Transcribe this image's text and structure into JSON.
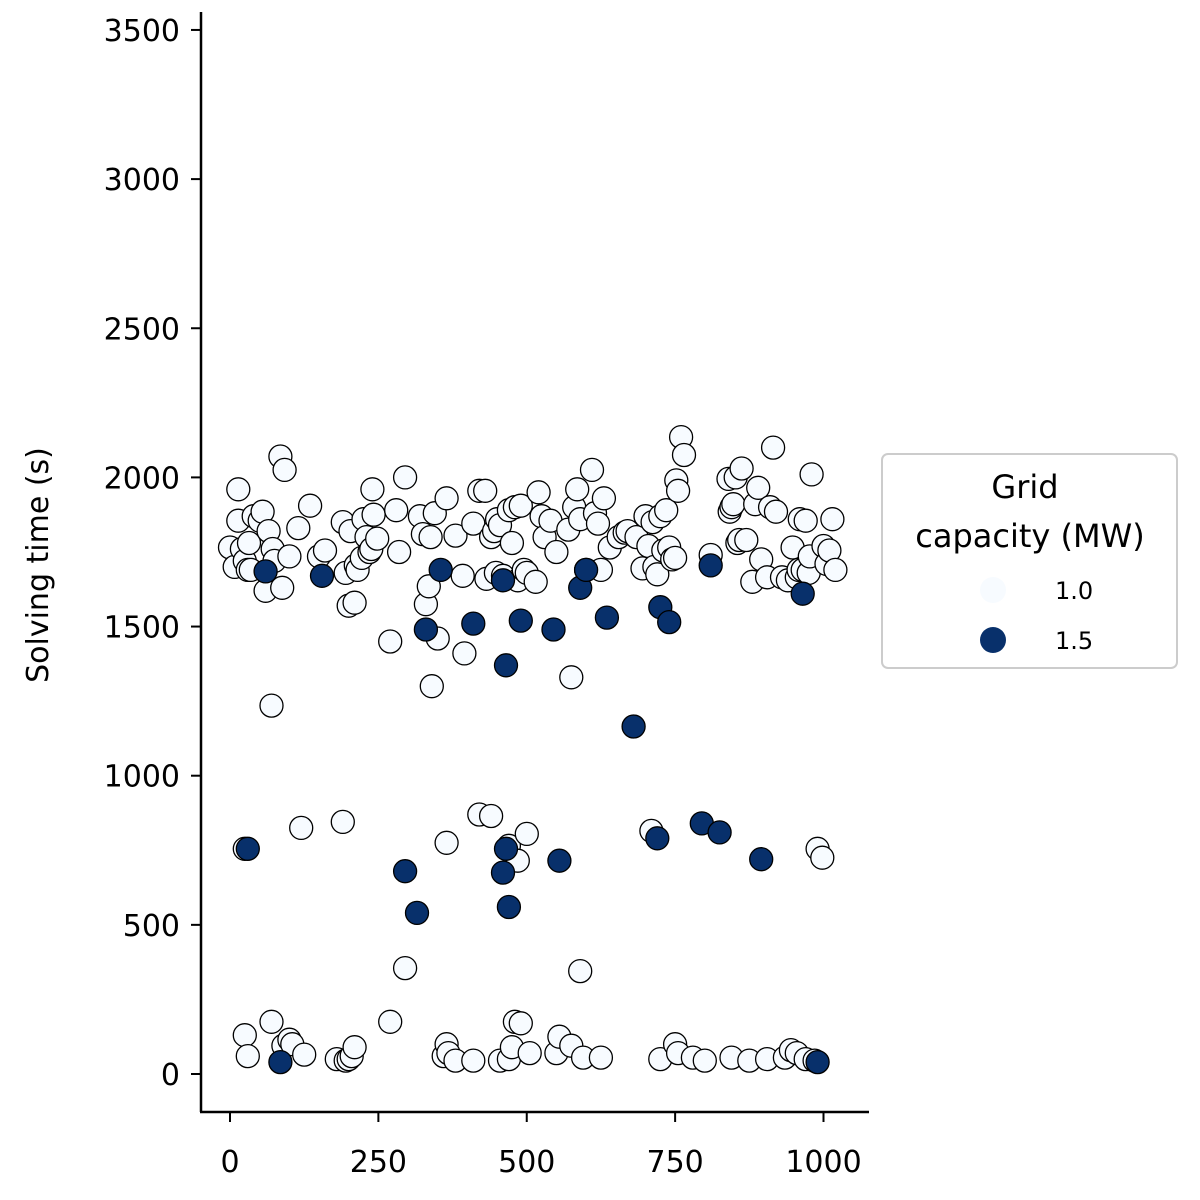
{
  "chart_data": {
    "type": "scatter",
    "title": "",
    "xlabel": "",
    "ylabel": "Solving time (s)",
    "xlim": [
      -50,
      1075
    ],
    "ylim": [
      -125,
      3550
    ],
    "xticks": [
      "0",
      "250",
      "500",
      "750",
      "1000"
    ],
    "xtick_values": [
      0,
      250,
      500,
      750,
      1000
    ],
    "yticks": [
      "0",
      "500",
      "1000",
      "1500",
      "2000",
      "2500",
      "3000",
      "3500"
    ],
    "ytick_values": [
      0,
      500,
      1000,
      1500,
      2000,
      2500,
      3000,
      3500
    ],
    "grid": false,
    "legend": {
      "title_line1": "Grid",
      "title_line2": "capacity (MW)",
      "placement": "center-right",
      "entries": [
        {
          "label": "1.0",
          "color": "#f7fbff"
        },
        {
          "label": "1.5",
          "color": "#08306b"
        }
      ]
    },
    "series": [
      {
        "name": "1.0",
        "color": "#f7fbff",
        "points": [
          [
            0,
            1765
          ],
          [
            8,
            1700
          ],
          [
            14,
            1960
          ],
          [
            14,
            1855
          ],
          [
            20,
            1760
          ],
          [
            25,
            1720
          ],
          [
            30,
            1690
          ],
          [
            32,
            1780
          ],
          [
            35,
            1690
          ],
          [
            40,
            1870
          ],
          [
            50,
            1855
          ],
          [
            55,
            1885
          ],
          [
            60,
            1620
          ],
          [
            65,
            1820
          ],
          [
            70,
            1235
          ],
          [
            72,
            1760
          ],
          [
            75,
            1720
          ],
          [
            85,
            2070
          ],
          [
            88,
            1630
          ],
          [
            92,
            2025
          ],
          [
            100,
            1735
          ],
          [
            115,
            1830
          ],
          [
            135,
            1905
          ],
          [
            150,
            1735
          ],
          [
            160,
            1755
          ],
          [
            190,
            1850
          ],
          [
            195,
            1680
          ],
          [
            200,
            1570
          ],
          [
            203,
            1820
          ],
          [
            210,
            1580
          ],
          [
            212,
            1705
          ],
          [
            215,
            1690
          ],
          [
            222,
            1730
          ],
          [
            225,
            1860
          ],
          [
            230,
            1800
          ],
          [
            235,
            1750
          ],
          [
            238,
            1760
          ],
          [
            240,
            1960
          ],
          [
            242,
            1875
          ],
          [
            248,
            1795
          ],
          [
            270,
            1450
          ],
          [
            280,
            1890
          ],
          [
            285,
            1750
          ],
          [
            295,
            2000
          ],
          [
            320,
            1870
          ],
          [
            325,
            1810
          ],
          [
            330,
            1575
          ],
          [
            335,
            1635
          ],
          [
            338,
            1800
          ],
          [
            340,
            1300
          ],
          [
            345,
            1880
          ],
          [
            350,
            1460
          ],
          [
            365,
            1930
          ],
          [
            380,
            1805
          ],
          [
            392,
            1670
          ],
          [
            395,
            1410
          ],
          [
            410,
            1845
          ],
          [
            420,
            1955
          ],
          [
            430,
            1955
          ],
          [
            432,
            1660
          ],
          [
            440,
            1800
          ],
          [
            445,
            1820
          ],
          [
            448,
            1680
          ],
          [
            450,
            1860
          ],
          [
            455,
            1840
          ],
          [
            460,
            1670
          ],
          [
            470,
            1890
          ],
          [
            475,
            1780
          ],
          [
            480,
            1900
          ],
          [
            485,
            1655
          ],
          [
            490,
            1905
          ],
          [
            495,
            1690
          ],
          [
            500,
            1680
          ],
          [
            515,
            1650
          ],
          [
            520,
            1950
          ],
          [
            525,
            1870
          ],
          [
            530,
            1800
          ],
          [
            540,
            1855
          ],
          [
            550,
            1750
          ],
          [
            570,
            1825
          ],
          [
            575,
            1330
          ],
          [
            580,
            1900
          ],
          [
            585,
            1960
          ],
          [
            590,
            1860
          ],
          [
            600,
            1690
          ],
          [
            610,
            2025
          ],
          [
            615,
            1880
          ],
          [
            620,
            1845
          ],
          [
            625,
            1690
          ],
          [
            630,
            1930
          ],
          [
            640,
            1765
          ],
          [
            655,
            1800
          ],
          [
            665,
            1815
          ],
          [
            670,
            1820
          ],
          [
            685,
            1800
          ],
          [
            695,
            1695
          ],
          [
            700,
            1870
          ],
          [
            705,
            1770
          ],
          [
            712,
            1850
          ],
          [
            715,
            1700
          ],
          [
            720,
            1675
          ],
          [
            725,
            1870
          ],
          [
            730,
            1755
          ],
          [
            735,
            1890
          ],
          [
            740,
            1765
          ],
          [
            745,
            1725
          ],
          [
            750,
            1730
          ],
          [
            752,
            1990
          ],
          [
            755,
            1955
          ],
          [
            760,
            2135
          ],
          [
            765,
            2075
          ],
          [
            810,
            1740
          ],
          [
            840,
            1995
          ],
          [
            842,
            1885
          ],
          [
            845,
            1900
          ],
          [
            848,
            1910
          ],
          [
            852,
            2000
          ],
          [
            855,
            1780
          ],
          [
            858,
            1790
          ],
          [
            862,
            2030
          ],
          [
            870,
            1790
          ],
          [
            880,
            1650
          ],
          [
            885,
            1910
          ],
          [
            890,
            1965
          ],
          [
            895,
            1725
          ],
          [
            905,
            1665
          ],
          [
            910,
            1900
          ],
          [
            915,
            2100
          ],
          [
            920,
            1885
          ],
          [
            930,
            1665
          ],
          [
            940,
            1655
          ],
          [
            948,
            1765
          ],
          [
            955,
            1665
          ],
          [
            958,
            1690
          ],
          [
            960,
            1860
          ],
          [
            965,
            1690
          ],
          [
            970,
            1855
          ],
          [
            975,
            1680
          ],
          [
            977,
            1735
          ],
          [
            980,
            2010
          ],
          [
            1000,
            1770
          ],
          [
            1005,
            1710
          ],
          [
            1010,
            1755
          ],
          [
            1015,
            1860
          ],
          [
            1020,
            1690
          ],
          [
            25,
            755
          ],
          [
            120,
            825
          ],
          [
            190,
            845
          ],
          [
            295,
            355
          ],
          [
            365,
            775
          ],
          [
            420,
            870
          ],
          [
            440,
            865
          ],
          [
            470,
            765
          ],
          [
            485,
            715
          ],
          [
            500,
            805
          ],
          [
            590,
            345
          ],
          [
            710,
            815
          ],
          [
            990,
            755
          ],
          [
            998,
            725
          ],
          [
            25,
            130
          ],
          [
            30,
            60
          ],
          [
            70,
            175
          ],
          [
            90,
            95
          ],
          [
            100,
            115
          ],
          [
            105,
            100
          ],
          [
            125,
            65
          ],
          [
            180,
            50
          ],
          [
            195,
            45
          ],
          [
            200,
            50
          ],
          [
            205,
            60
          ],
          [
            210,
            90
          ],
          [
            270,
            175
          ],
          [
            360,
            60
          ],
          [
            365,
            100
          ],
          [
            368,
            70
          ],
          [
            380,
            45
          ],
          [
            410,
            45
          ],
          [
            455,
            45
          ],
          [
            470,
            50
          ],
          [
            475,
            90
          ],
          [
            480,
            175
          ],
          [
            490,
            170
          ],
          [
            505,
            70
          ],
          [
            550,
            70
          ],
          [
            555,
            125
          ],
          [
            575,
            95
          ],
          [
            595,
            55
          ],
          [
            625,
            55
          ],
          [
            725,
            50
          ],
          [
            750,
            100
          ],
          [
            755,
            70
          ],
          [
            780,
            55
          ],
          [
            800,
            45
          ],
          [
            845,
            55
          ],
          [
            875,
            45
          ],
          [
            905,
            50
          ],
          [
            935,
            55
          ],
          [
            945,
            80
          ],
          [
            955,
            70
          ],
          [
            970,
            50
          ],
          [
            985,
            45
          ]
        ]
      },
      {
        "name": "1.5",
        "color": "#08306b",
        "points": [
          [
            60,
            1685
          ],
          [
            155,
            1670
          ],
          [
            330,
            1490
          ],
          [
            355,
            1690
          ],
          [
            410,
            1510
          ],
          [
            460,
            1655
          ],
          [
            465,
            1370
          ],
          [
            490,
            1520
          ],
          [
            545,
            1490
          ],
          [
            590,
            1630
          ],
          [
            600,
            1690
          ],
          [
            635,
            1530
          ],
          [
            680,
            1165
          ],
          [
            725,
            1565
          ],
          [
            740,
            1515
          ],
          [
            810,
            1705
          ],
          [
            965,
            1610
          ],
          [
            30,
            755
          ],
          [
            295,
            680
          ],
          [
            315,
            540
          ],
          [
            460,
            675
          ],
          [
            465,
            755
          ],
          [
            470,
            560
          ],
          [
            555,
            715
          ],
          [
            720,
            790
          ],
          [
            795,
            840
          ],
          [
            825,
            810
          ],
          [
            895,
            720
          ],
          [
            85,
            40
          ],
          [
            990,
            40
          ]
        ]
      }
    ]
  }
}
